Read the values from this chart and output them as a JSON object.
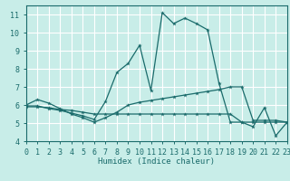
{
  "xlabel": "Humidex (Indice chaleur)",
  "bg_color": "#c8ede8",
  "grid_color": "#ffffff",
  "line_color": "#1a6b6b",
  "xlim": [
    0,
    23
  ],
  "ylim": [
    4,
    11.5
  ],
  "xticks": [
    0,
    1,
    2,
    3,
    4,
    5,
    6,
    7,
    8,
    9,
    10,
    11,
    12,
    13,
    14,
    15,
    16,
    17,
    18,
    19,
    20,
    21,
    22,
    23
  ],
  "yticks": [
    4,
    5,
    6,
    7,
    8,
    9,
    10,
    11
  ],
  "line1_x": [
    0,
    1,
    2,
    3,
    4,
    5,
    6,
    7,
    8,
    9,
    10,
    11,
    12,
    13,
    14,
    15,
    16,
    17,
    18,
    19,
    20,
    21,
    22,
    23
  ],
  "line1_y": [
    6.0,
    6.3,
    6.1,
    5.8,
    5.5,
    5.3,
    5.05,
    5.3,
    5.6,
    6.0,
    6.15,
    6.25,
    6.35,
    6.45,
    6.55,
    6.65,
    6.75,
    6.85,
    7.0,
    7.0,
    5.15,
    5.15,
    5.15,
    5.05
  ],
  "line2_x": [
    0,
    1,
    2,
    3,
    4,
    5,
    6,
    7,
    8,
    9,
    10,
    11,
    12,
    13,
    14,
    15,
    16,
    17,
    18,
    19,
    20,
    21,
    22,
    23
  ],
  "line2_y": [
    5.95,
    5.95,
    5.8,
    5.7,
    5.55,
    5.4,
    5.2,
    6.2,
    7.8,
    8.3,
    9.3,
    6.8,
    11.1,
    10.5,
    10.8,
    10.5,
    10.15,
    7.2,
    5.05,
    5.05,
    4.8,
    5.85,
    4.3,
    5.05
  ],
  "line3_x": [
    0,
    1,
    2,
    3,
    4,
    5,
    6,
    7,
    8,
    9,
    10,
    11,
    12,
    13,
    14,
    15,
    16,
    17,
    18,
    19,
    20,
    21,
    22,
    23
  ],
  "line3_y": [
    5.9,
    5.9,
    5.85,
    5.75,
    5.7,
    5.6,
    5.5,
    5.5,
    5.5,
    5.5,
    5.5,
    5.5,
    5.5,
    5.5,
    5.5,
    5.5,
    5.5,
    5.5,
    5.5,
    5.05,
    5.05,
    5.05,
    5.05,
    5.05
  ]
}
